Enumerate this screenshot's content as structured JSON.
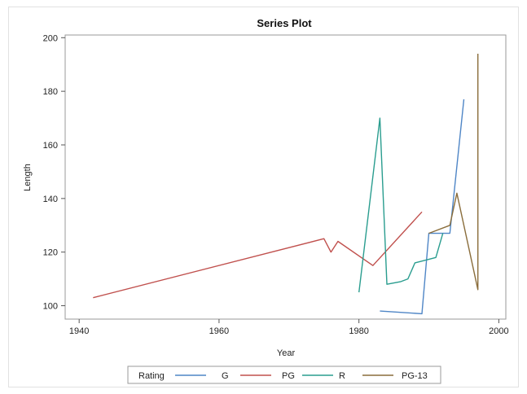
{
  "chart_data": {
    "type": "line",
    "title": "Series Plot",
    "xlabel": "Year",
    "ylabel": "Length",
    "xlim": [
      1938,
      2001
    ],
    "ylim": [
      95,
      201
    ],
    "xticks": [
      1940,
      1960,
      1980,
      2000
    ],
    "yticks": [
      100,
      120,
      140,
      160,
      180,
      200
    ],
    "grid": false,
    "legend_position": "bottom",
    "legend_title": "Rating",
    "series": [
      {
        "name": "G",
        "color": "#4f86c6",
        "points": [
          [
            1983,
            98
          ],
          [
            1989,
            97
          ],
          [
            1990,
            127
          ],
          [
            1993,
            127
          ],
          [
            1995,
            177
          ]
        ]
      },
      {
        "name": "PG",
        "color": "#c0504d",
        "points": [
          [
            1942,
            103
          ],
          [
            1975,
            125
          ],
          [
            1976,
            120
          ],
          [
            1977,
            124
          ],
          [
            1982,
            115
          ],
          [
            1989,
            135
          ]
        ]
      },
      {
        "name": "R",
        "color": "#2a9d8f",
        "points": [
          [
            1980,
            105
          ],
          [
            1983,
            170
          ],
          [
            1984,
            108
          ],
          [
            1986,
            109
          ],
          [
            1987,
            110
          ],
          [
            1988,
            116
          ],
          [
            1991,
            118
          ],
          [
            1992,
            127
          ]
        ]
      },
      {
        "name": "PG-13",
        "color": "#8a6d3b",
        "points": [
          [
            1990,
            127
          ],
          [
            1993,
            130
          ],
          [
            1994,
            142
          ],
          [
            1997,
            106
          ],
          [
            1997,
            194
          ]
        ]
      }
    ]
  }
}
